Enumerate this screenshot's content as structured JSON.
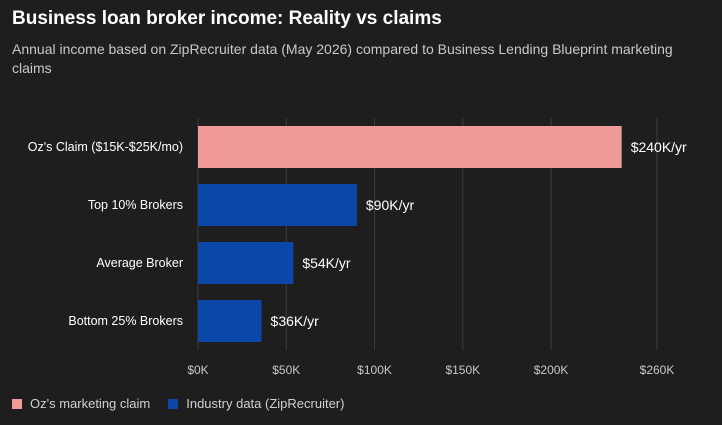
{
  "chart_data": {
    "type": "bar",
    "orientation": "horizontal",
    "title": "Business loan broker income: Reality vs claims",
    "subtitle": "Annual income based on ZipRecruiter data (May 2026) compared to Business Lending Blueprint marketing claims",
    "categories": [
      "Oz's Claim ($15K-$25K/mo)",
      "Top 10% Brokers",
      "Average Broker",
      "Bottom 25% Brokers"
    ],
    "values": [
      240000,
      90000,
      54000,
      36000
    ],
    "data_labels": [
      "$240K/yr",
      "$90K/yr",
      "$54K/yr",
      "$36K/yr"
    ],
    "bar_groups": [
      "claim",
      "industry",
      "industry",
      "industry"
    ],
    "xlim": [
      0,
      260000
    ],
    "xticks": [
      0,
      50000,
      100000,
      150000,
      200000,
      260000
    ],
    "xtick_labels": [
      "$0K",
      "$50K",
      "$100K",
      "$150K",
      "$200K",
      "$260K"
    ],
    "grid": true,
    "legend_position": "bottom-left",
    "legend": [
      {
        "key": "claim",
        "label": "Oz's marketing claim",
        "color": "#f19a9a"
      },
      {
        "key": "industry",
        "label": "Industry data (ZipRecruiter)",
        "color": "#0a47a9"
      }
    ]
  }
}
